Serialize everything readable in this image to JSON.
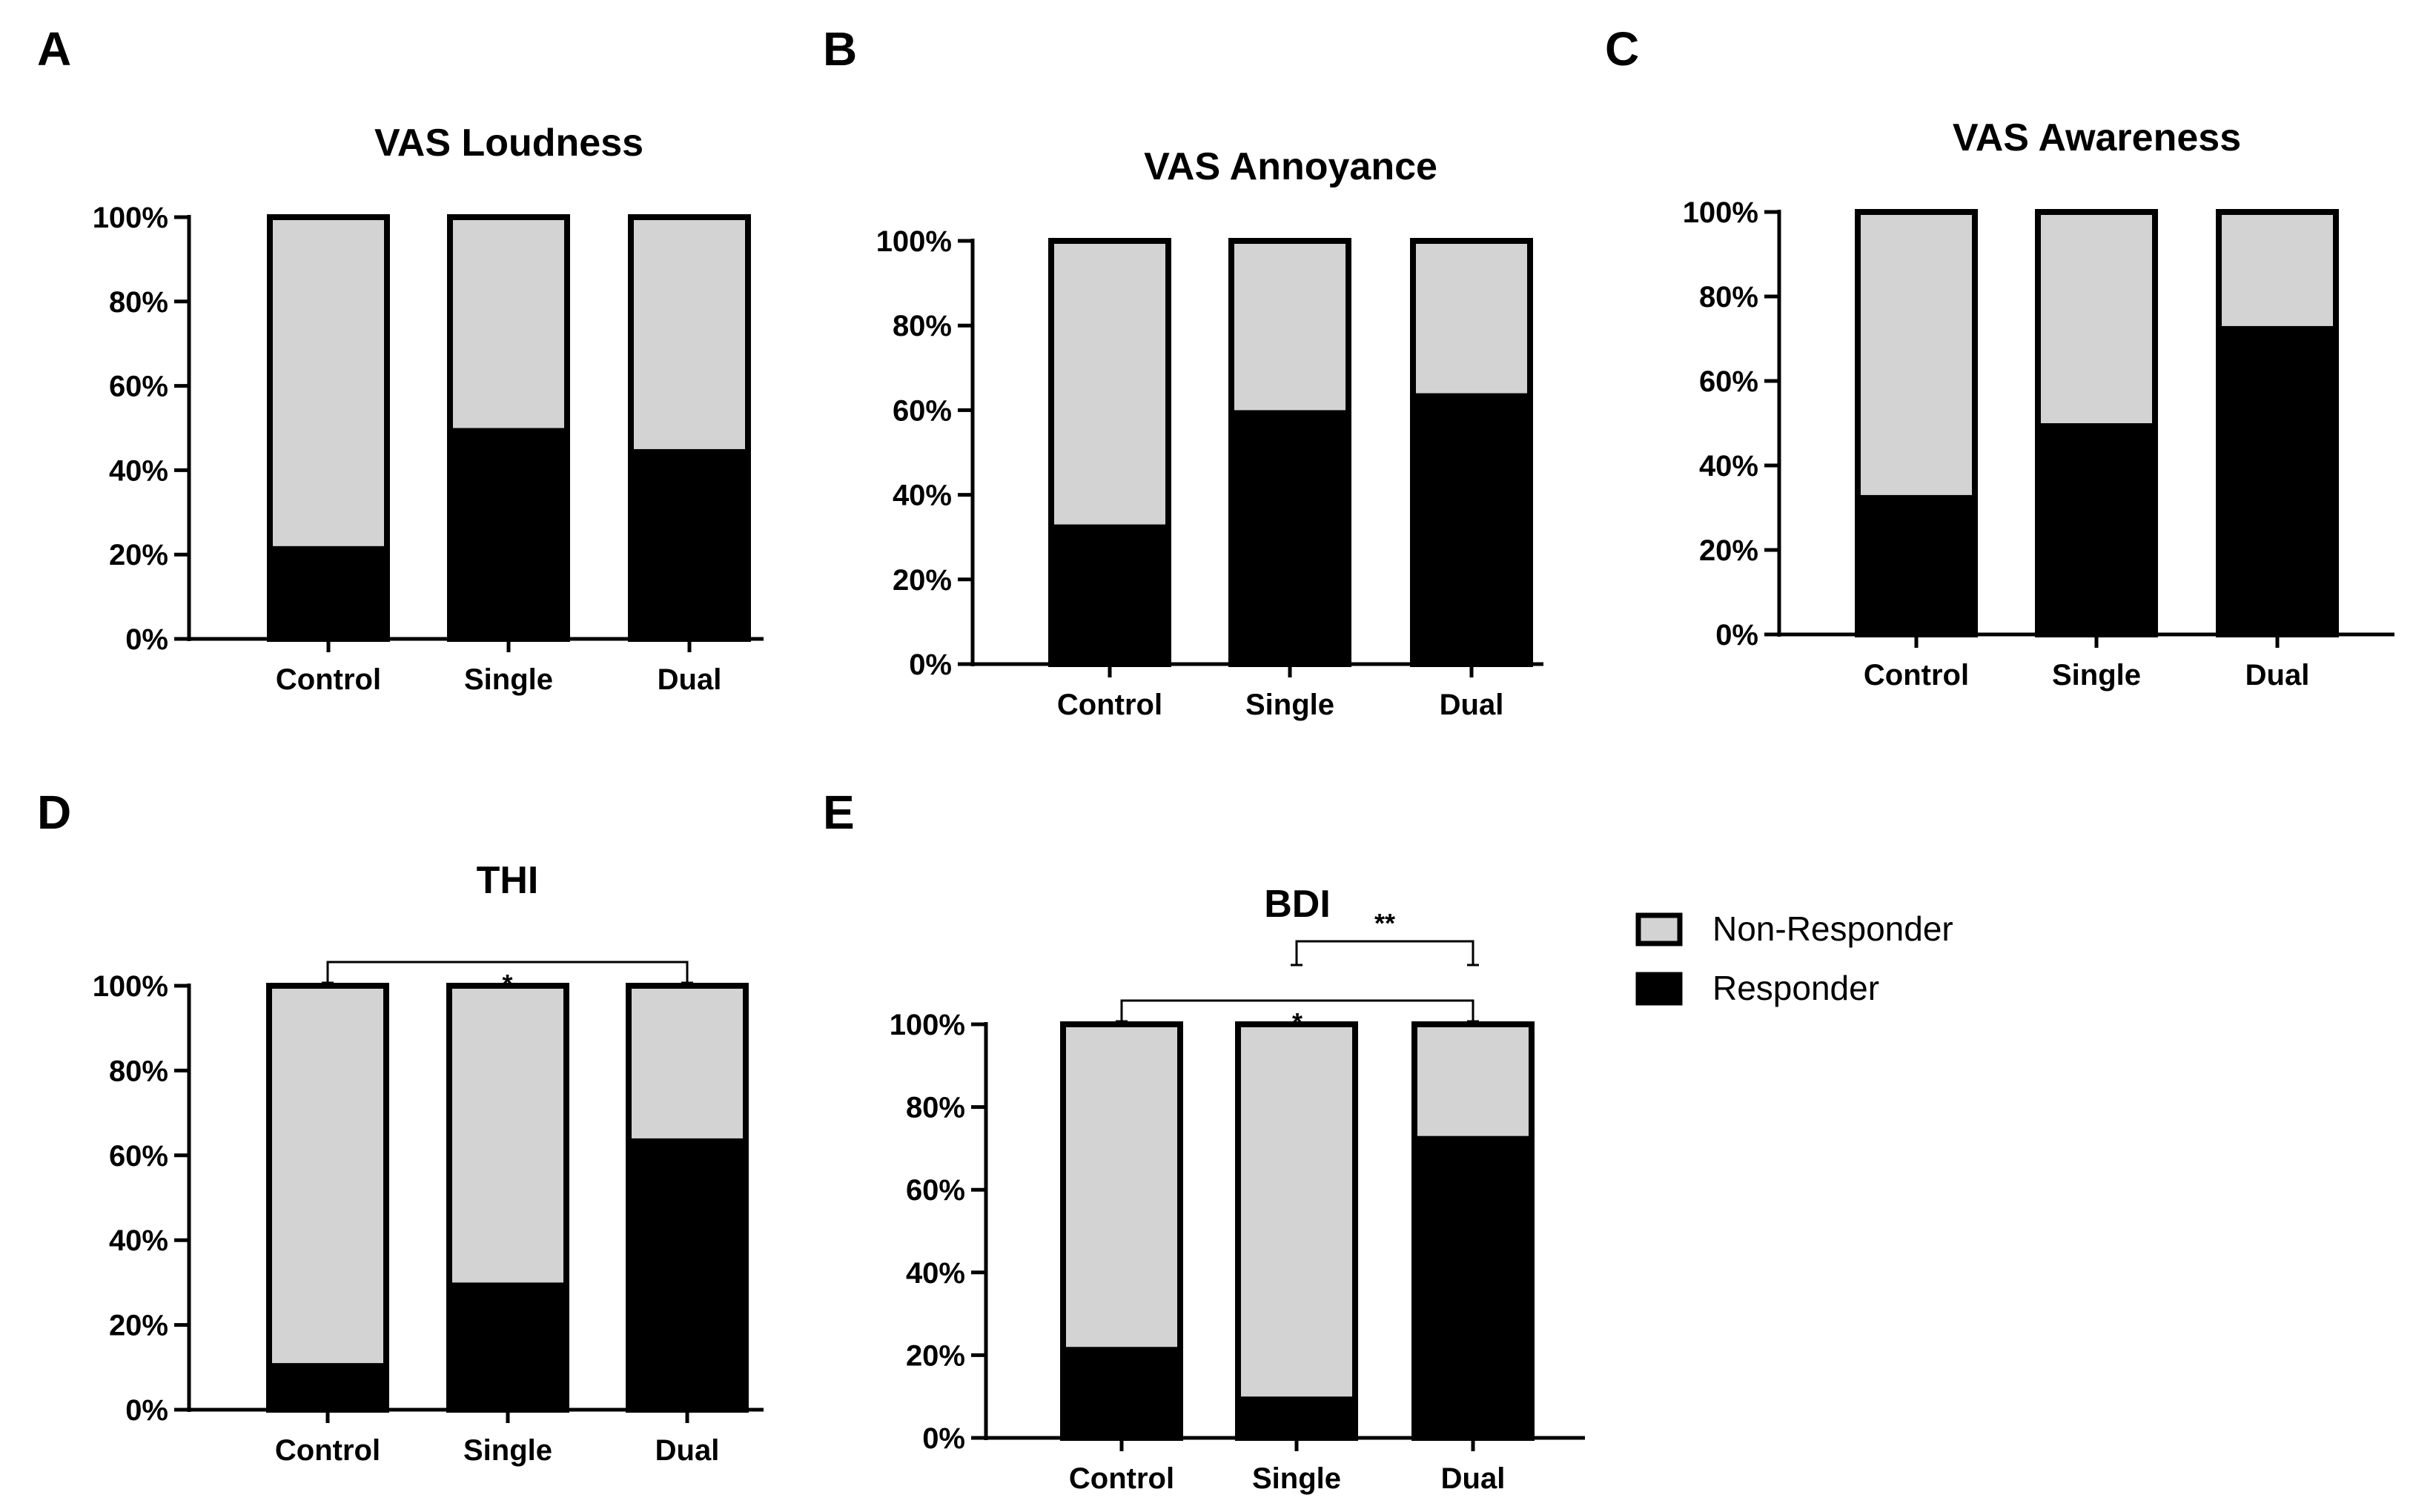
{
  "legend": {
    "items": [
      {
        "label": "Non-Responder",
        "color": "#d3d3d3"
      },
      {
        "label": "Responder",
        "color": "#000000"
      }
    ]
  },
  "colors": {
    "responder": "#000000",
    "non_responder": "#d3d3d3",
    "outline": "#000000"
  },
  "chart_data": [
    {
      "panel": "A",
      "type": "bar",
      "stacked": true,
      "title": "VAS Loudness",
      "categories": [
        "Control",
        "Single",
        "Dual"
      ],
      "series": [
        {
          "name": "Responder",
          "values": [
            22,
            50,
            45
          ]
        },
        {
          "name": "Non-Responder",
          "values": [
            78,
            50,
            55
          ]
        }
      ],
      "ylim": [
        0,
        100
      ],
      "yticks": [
        "0%",
        "20%",
        "40%",
        "60%",
        "80%",
        "100%"
      ],
      "significance": []
    },
    {
      "panel": "B",
      "type": "bar",
      "stacked": true,
      "title": "VAS Annoyance",
      "categories": [
        "Control",
        "Single",
        "Dual"
      ],
      "series": [
        {
          "name": "Responder",
          "values": [
            33,
            60,
            64
          ]
        },
        {
          "name": "Non-Responder",
          "values": [
            67,
            40,
            36
          ]
        }
      ],
      "ylim": [
        0,
        100
      ],
      "yticks": [
        "0%",
        "20%",
        "40%",
        "60%",
        "80%",
        "100%"
      ],
      "significance": []
    },
    {
      "panel": "C",
      "type": "bar",
      "stacked": true,
      "title": "VAS Awareness",
      "categories": [
        "Control",
        "Single",
        "Dual"
      ],
      "series": [
        {
          "name": "Responder",
          "values": [
            33,
            50,
            73
          ]
        },
        {
          "name": "Non-Responder",
          "values": [
            67,
            50,
            27
          ]
        }
      ],
      "ylim": [
        0,
        100
      ],
      "yticks": [
        "0%",
        "20%",
        "40%",
        "60%",
        "80%",
        "100%"
      ],
      "significance": []
    },
    {
      "panel": "D",
      "type": "bar",
      "stacked": true,
      "title": "THI",
      "categories": [
        "Control",
        "Single",
        "Dual"
      ],
      "series": [
        {
          "name": "Responder",
          "values": [
            11,
            30,
            64
          ]
        },
        {
          "name": "Non-Responder",
          "values": [
            89,
            70,
            36
          ]
        }
      ],
      "ylim": [
        0,
        100
      ],
      "yticks": [
        "0%",
        "20%",
        "40%",
        "60%",
        "80%",
        "100%"
      ],
      "significance": [
        {
          "from": "Control",
          "to": "Dual",
          "label": "*"
        }
      ]
    },
    {
      "panel": "E",
      "type": "bar",
      "stacked": true,
      "title": "BDI",
      "categories": [
        "Control",
        "Single",
        "Dual"
      ],
      "series": [
        {
          "name": "Responder",
          "values": [
            22,
            10,
            73
          ]
        },
        {
          "name": "Non-Responder",
          "values": [
            78,
            90,
            27
          ]
        }
      ],
      "ylim": [
        0,
        100
      ],
      "yticks": [
        "0%",
        "20%",
        "40%",
        "60%",
        "80%",
        "100%"
      ],
      "significance": [
        {
          "from": "Single",
          "to": "Dual",
          "label": "**"
        },
        {
          "from": "Control",
          "to": "Dual",
          "label": "*"
        }
      ]
    }
  ]
}
